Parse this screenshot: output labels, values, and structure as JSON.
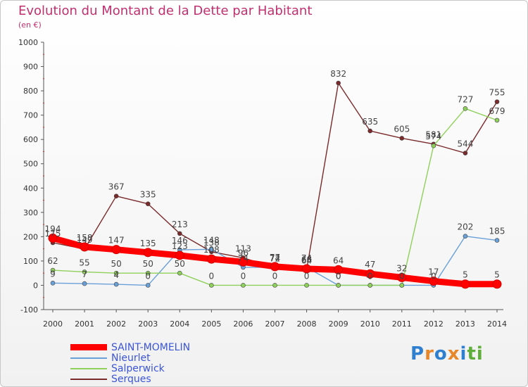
{
  "chart_data": {
    "type": "line",
    "title": "Evolution du Montant de la Dette par Habitant",
    "subtitle": "(en €)",
    "x": [
      "2000",
      "2001",
      "2002",
      "2003",
      "2004",
      "2005",
      "2006",
      "2007",
      "2008",
      "2009",
      "2010",
      "2011",
      "2012",
      "2013",
      "2014"
    ],
    "ylim": [
      -100,
      1000
    ],
    "yticks": [
      -100,
      0,
      100,
      200,
      300,
      400,
      500,
      600,
      700,
      800,
      900,
      1000
    ],
    "grid": false,
    "legend_position": "bottom-left",
    "series": [
      {
        "name": "SAINT-MOMELIN",
        "color": "#ff0000",
        "values": [
          194,
          158,
          147,
          135,
          123,
          108,
          96,
          77,
          68,
          64,
          47,
          32,
          17,
          5,
          5
        ]
      },
      {
        "name": "Nieurlet",
        "color": "#6aa0d8",
        "values": [
          9,
          7,
          4,
          0,
          146,
          148,
          74,
          74,
          74,
          0,
          0,
          0,
          0,
          202,
          185
        ]
      },
      {
        "name": "Salperwick",
        "color": "#8fd05a",
        "values": [
          62,
          55,
          50,
          50,
          50,
          0,
          0,
          0,
          0,
          0,
          0,
          0,
          574,
          727,
          679
        ]
      },
      {
        "name": "Serques",
        "color": "#7a2a2a",
        "values": [
          175,
          149,
          367,
          335,
          213,
          138,
          113,
          72,
          64,
          832,
          635,
          605,
          581,
          544,
          755
        ]
      }
    ]
  },
  "logo": {
    "text": "Proxiti",
    "letters": [
      "P",
      "r",
      "o",
      "x",
      "i",
      "t",
      "i"
    ],
    "colors": [
      "#2f7fd0",
      "#e8862a",
      "#2f7fd0",
      "#e8862a",
      "#2f7fd0",
      "#5fae3a",
      "#5fae3a"
    ]
  }
}
